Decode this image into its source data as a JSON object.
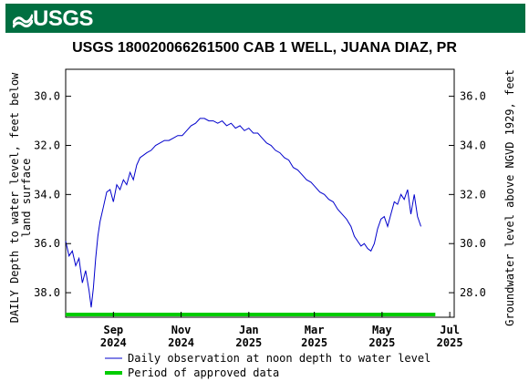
{
  "header": {
    "logo_text": "USGS",
    "banner_color": "#006f41"
  },
  "chart_data": {
    "type": "line",
    "title": "USGS 180020066261500 CAB 1 WELL, JUANA DIAZ, PR",
    "ylabel_left_line1": "DAILY Depth to water level, feet below",
    "ylabel_left_line2": "land surface",
    "ylabel_right": "Groundwater level above NGVD 1929, feet",
    "y_left_range": [
      39.0,
      28.9
    ],
    "y_left_ticks": [
      "30.0",
      "32.0",
      "34.0",
      "36.0",
      "38.0"
    ],
    "y_right_ticks": [
      "36.0",
      "34.0",
      "32.0",
      "30.0",
      "28.0"
    ],
    "x_tick_labels": [
      {
        "month": "Sep",
        "year": "2024"
      },
      {
        "month": "Nov",
        "year": "2024"
      },
      {
        "month": "Jan",
        "year": "2025"
      },
      {
        "month": "Mar",
        "year": "2025"
      },
      {
        "month": "May",
        "year": "2025"
      },
      {
        "month": "Jul",
        "year": "2025"
      }
    ],
    "x_range": [
      "2024-07-20",
      "2025-07-05"
    ],
    "series": [
      {
        "name": "Daily observation at noon depth to water level",
        "color": "#0000cc",
        "points": [
          [
            "2024-07-20",
            35.9
          ],
          [
            "2024-07-23",
            36.5
          ],
          [
            "2024-07-26",
            36.3
          ],
          [
            "2024-07-29",
            36.9
          ],
          [
            "2024-08-01",
            36.6
          ],
          [
            "2024-08-04",
            37.6
          ],
          [
            "2024-08-07",
            37.1
          ],
          [
            "2024-08-10",
            37.9
          ],
          [
            "2024-08-12",
            38.6
          ],
          [
            "2024-08-14",
            37.8
          ],
          [
            "2024-08-16",
            36.6
          ],
          [
            "2024-08-18",
            35.7
          ],
          [
            "2024-08-20",
            35.1
          ],
          [
            "2024-08-23",
            34.5
          ],
          [
            "2024-08-26",
            33.9
          ],
          [
            "2024-08-29",
            33.8
          ],
          [
            "2024-09-01",
            34.3
          ],
          [
            "2024-09-04",
            33.6
          ],
          [
            "2024-09-07",
            33.8
          ],
          [
            "2024-09-10",
            33.4
          ],
          [
            "2024-09-13",
            33.6
          ],
          [
            "2024-09-16",
            33.1
          ],
          [
            "2024-09-19",
            33.4
          ],
          [
            "2024-09-22",
            32.8
          ],
          [
            "2024-09-25",
            32.5
          ],
          [
            "2024-09-28",
            32.4
          ],
          [
            "2024-10-01",
            32.3
          ],
          [
            "2024-10-05",
            32.2
          ],
          [
            "2024-10-09",
            32.0
          ],
          [
            "2024-10-13",
            31.9
          ],
          [
            "2024-10-17",
            31.8
          ],
          [
            "2024-10-21",
            31.8
          ],
          [
            "2024-10-25",
            31.7
          ],
          [
            "2024-10-29",
            31.6
          ],
          [
            "2024-11-02",
            31.6
          ],
          [
            "2024-11-06",
            31.4
          ],
          [
            "2024-11-10",
            31.2
          ],
          [
            "2024-11-14",
            31.1
          ],
          [
            "2024-11-18",
            30.9
          ],
          [
            "2024-11-22",
            30.9
          ],
          [
            "2024-11-26",
            31.0
          ],
          [
            "2024-11-30",
            31.0
          ],
          [
            "2024-12-04",
            31.1
          ],
          [
            "2024-12-08",
            31.0
          ],
          [
            "2024-12-12",
            31.2
          ],
          [
            "2024-12-16",
            31.1
          ],
          [
            "2024-12-20",
            31.3
          ],
          [
            "2024-12-24",
            31.2
          ],
          [
            "2024-12-28",
            31.4
          ],
          [
            "2025-01-01",
            31.3
          ],
          [
            "2025-01-05",
            31.5
          ],
          [
            "2025-01-09",
            31.5
          ],
          [
            "2025-01-13",
            31.7
          ],
          [
            "2025-01-17",
            31.9
          ],
          [
            "2025-01-21",
            32.0
          ],
          [
            "2025-01-25",
            32.2
          ],
          [
            "2025-01-29",
            32.3
          ],
          [
            "2025-02-02",
            32.5
          ],
          [
            "2025-02-06",
            32.6
          ],
          [
            "2025-02-10",
            32.9
          ],
          [
            "2025-02-14",
            33.0
          ],
          [
            "2025-02-18",
            33.2
          ],
          [
            "2025-02-22",
            33.4
          ],
          [
            "2025-02-26",
            33.5
          ],
          [
            "2025-03-02",
            33.7
          ],
          [
            "2025-03-06",
            33.9
          ],
          [
            "2025-03-10",
            34.0
          ],
          [
            "2025-03-14",
            34.2
          ],
          [
            "2025-03-18",
            34.3
          ],
          [
            "2025-03-22",
            34.6
          ],
          [
            "2025-03-26",
            34.8
          ],
          [
            "2025-03-30",
            35.0
          ],
          [
            "2025-04-03",
            35.3
          ],
          [
            "2025-04-06",
            35.7
          ],
          [
            "2025-04-09",
            35.9
          ],
          [
            "2025-04-12",
            36.1
          ],
          [
            "2025-04-15",
            36.0
          ],
          [
            "2025-04-18",
            36.2
          ],
          [
            "2025-04-21",
            36.3
          ],
          [
            "2025-04-24",
            36.0
          ],
          [
            "2025-04-27",
            35.4
          ],
          [
            "2025-04-30",
            35.0
          ],
          [
            "2025-05-03",
            34.9
          ],
          [
            "2025-05-06",
            35.3
          ],
          [
            "2025-05-09",
            34.8
          ],
          [
            "2025-05-12",
            34.3
          ],
          [
            "2025-05-15",
            34.4
          ],
          [
            "2025-05-18",
            34.0
          ],
          [
            "2025-05-21",
            34.2
          ],
          [
            "2025-05-24",
            33.8
          ],
          [
            "2025-05-27",
            34.8
          ],
          [
            "2025-05-30",
            34.0
          ],
          [
            "2025-06-02",
            34.9
          ],
          [
            "2025-06-05",
            35.3
          ]
        ]
      },
      {
        "name": "Period of approved data",
        "color": "#00cc00",
        "range": [
          "2024-07-20",
          "2025-06-18"
        ]
      }
    ],
    "legend_position": "bottom"
  }
}
